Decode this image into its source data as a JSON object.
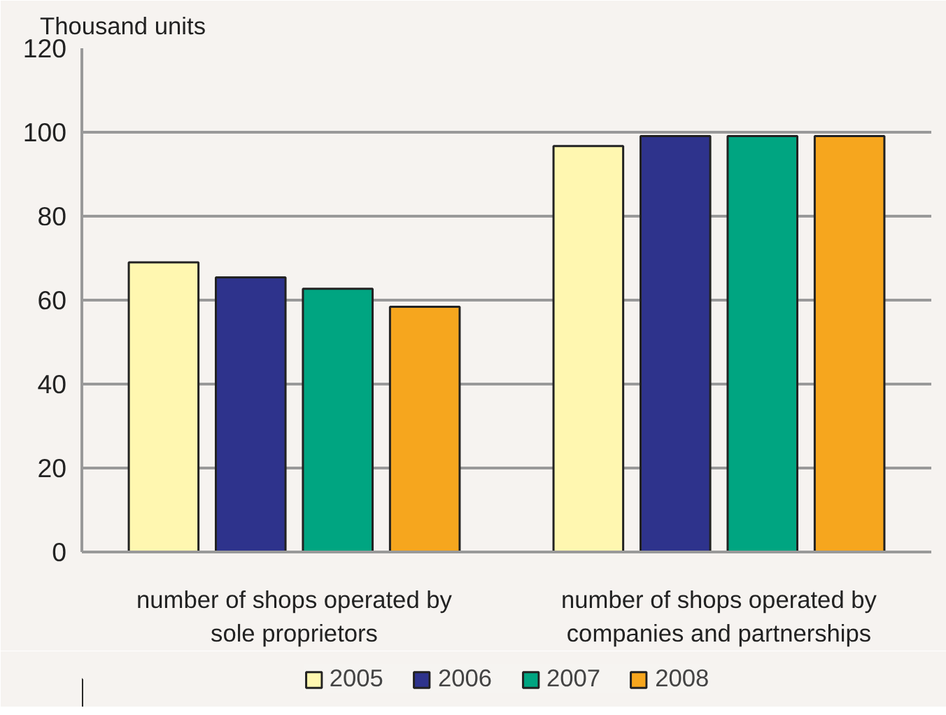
{
  "chart_data": {
    "type": "bar",
    "ylabel": "Thousand units",
    "categories": [
      "number of shops operated by sole proprietors",
      "number of shops operated by companies and partnerships"
    ],
    "series": [
      {
        "name": "2005",
        "color": "#fff7b0",
        "values": [
          69,
          96.7
        ]
      },
      {
        "name": "2006",
        "color": "#2e338c",
        "values": [
          65.4,
          99.1
        ]
      },
      {
        "name": "2007",
        "color": "#00a581",
        "values": [
          62.7,
          99.1
        ]
      },
      {
        "name": "2008",
        "color": "#f6a61e",
        "values": [
          58.4,
          99.1
        ]
      }
    ],
    "ylim": [
      0,
      120
    ],
    "yticks": [
      0,
      20,
      40,
      60,
      80,
      100,
      120
    ],
    "grid": "y",
    "legend": "bottom"
  }
}
